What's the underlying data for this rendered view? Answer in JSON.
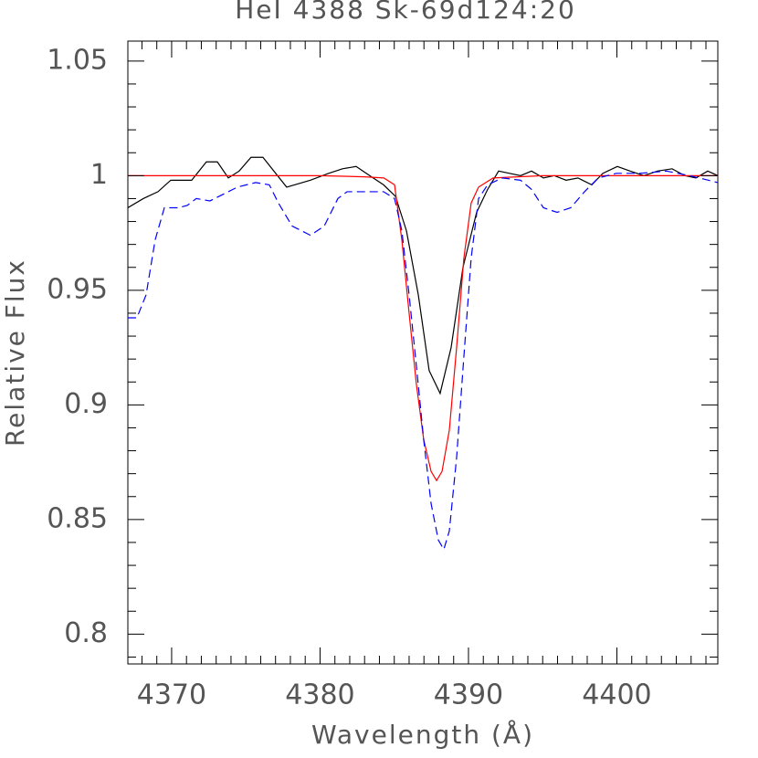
{
  "chart_data": {
    "type": "line",
    "title": "HeI 4388 Sk-69d124:20",
    "xlabel": "Wavelength (Å)",
    "ylabel": "Relative Flux",
    "xlim": [
      4367.05,
      4406.8
    ],
    "ylim": [
      0.787,
      1.0587
    ],
    "xticks": [
      4370,
      4380,
      4390,
      4400
    ],
    "yticks": [
      {
        "value": 0.8,
        "label": "0.8"
      },
      0.85,
      {
        "value": 0.9,
        "label": "0.9"
      },
      0.95,
      {
        "value": 1,
        "label": "1"
      },
      1.05
    ],
    "xminorticks": [
      4368,
      4369,
      4371,
      4372,
      4373,
      4374,
      4375,
      4376,
      4377,
      4378,
      4379,
      4381,
      4382,
      4383,
      4384,
      4385,
      4386,
      4387,
      4388,
      4389,
      4391,
      4392,
      4393,
      4394,
      4395,
      4396,
      4397,
      4398,
      4399,
      4401,
      4402,
      4403,
      4404,
      4405,
      4406
    ],
    "yminorticks": [
      0.79,
      0.81,
      0.82,
      0.83,
      0.84,
      0.86,
      0.87,
      0.88,
      0.89,
      0.91,
      0.92,
      0.93,
      0.94,
      0.96,
      0.97,
      0.98,
      0.99,
      1.01,
      1.02,
      1.03,
      1.04
    ],
    "series": [
      {
        "color": "#000000",
        "dash": false,
        "x": [
          4367.05,
          4368.09,
          4369.08,
          4369.94,
          4371.35,
          4372.34,
          4373.08,
          4373.82,
          4374.55,
          4375.35,
          4376.15,
          4377.75,
          4379.35,
          4380.58,
          4381.51,
          4382.43,
          4383.35,
          4384.28,
          4385.08,
          4385.82,
          4386.62,
          4387.35,
          4388.09,
          4388.83,
          4389.63,
          4390.55,
          4391.29,
          4392.03,
          4392.77,
          4393.51,
          4394.25,
          4395.05,
          4395.78,
          4396.58,
          4397.38,
          4398.31,
          4399.05,
          4400.03,
          4400.89,
          4401.82,
          4402.74,
          4403.72,
          4404.58,
          4405.32,
          4406.12,
          4406.8
        ],
        "values": [
          0.986,
          0.99,
          0.993,
          0.998,
          0.998,
          1.006,
          1.006,
          0.999,
          1.002,
          1.008,
          1.008,
          0.995,
          0.998,
          1.001,
          1.003,
          1.004,
          1.0,
          0.996,
          0.991,
          0.976,
          0.948,
          0.915,
          0.905,
          0.925,
          0.96,
          0.984,
          0.994,
          1.002,
          1.001,
          1.0,
          1.002,
          0.999,
          1.0,
          0.998,
          0.999,
          0.996,
          1.001,
          1.004,
          1.002,
          1.0,
          1.002,
          1.003,
          1.0,
          0.999,
          1.002,
          1.0
        ]
      },
      {
        "color": "#ff0000",
        "dash": false,
        "x": [
          4367.05,
          4375,
          4380,
          4383,
          4384.3,
          4385.02,
          4385.51,
          4386,
          4386.49,
          4386.98,
          4387.48,
          4387.85,
          4388.22,
          4388.71,
          4389.2,
          4389.69,
          4390.18,
          4390.68,
          4391.66,
          4395,
          4406.8
        ],
        "values": [
          1.0,
          1.0,
          1.0,
          0.9995,
          0.999,
          0.996,
          0.972,
          0.94,
          0.909,
          0.885,
          0.871,
          0.867,
          0.871,
          0.889,
          0.925,
          0.964,
          0.988,
          0.995,
          0.999,
          1.0,
          1.0
        ]
      },
      {
        "color": "#0000ff",
        "dash": true,
        "x": [
          4367.05,
          4367.66,
          4368.28,
          4368.89,
          4369.51,
          4370.43,
          4371.05,
          4371.66,
          4372.58,
          4373.51,
          4374.43,
          4375.66,
          4376.58,
          4377.2,
          4378.12,
          4379.35,
          4380.28,
          4381.2,
          4381.82,
          4383.05,
          4384.28,
          4385.02,
          4385.51,
          4386.0,
          4386.49,
          4386.98,
          4387.48,
          4387.97,
          4388.34,
          4388.71,
          4389.2,
          4389.69,
          4390.18,
          4390.68,
          4391.29,
          4392.28,
          4393.51,
          4394.25,
          4395.05,
          4395.97,
          4396.89,
          4397.82,
          4398.74,
          4399.97,
          4401.51,
          4403.35,
          4404.89,
          4406.8
        ],
        "values": [
          0.938,
          0.938,
          0.948,
          0.972,
          0.986,
          0.986,
          0.987,
          0.99,
          0.989,
          0.992,
          0.995,
          0.997,
          0.996,
          0.988,
          0.978,
          0.974,
          0.978,
          0.99,
          0.993,
          0.993,
          0.993,
          0.99,
          0.976,
          0.948,
          0.917,
          0.885,
          0.857,
          0.841,
          0.837,
          0.845,
          0.877,
          0.921,
          0.964,
          0.99,
          0.996,
          0.999,
          0.998,
          0.994,
          0.986,
          0.984,
          0.986,
          0.993,
          0.999,
          1.001,
          1.001,
          1.002,
          1.0,
          0.997
        ]
      }
    ]
  }
}
